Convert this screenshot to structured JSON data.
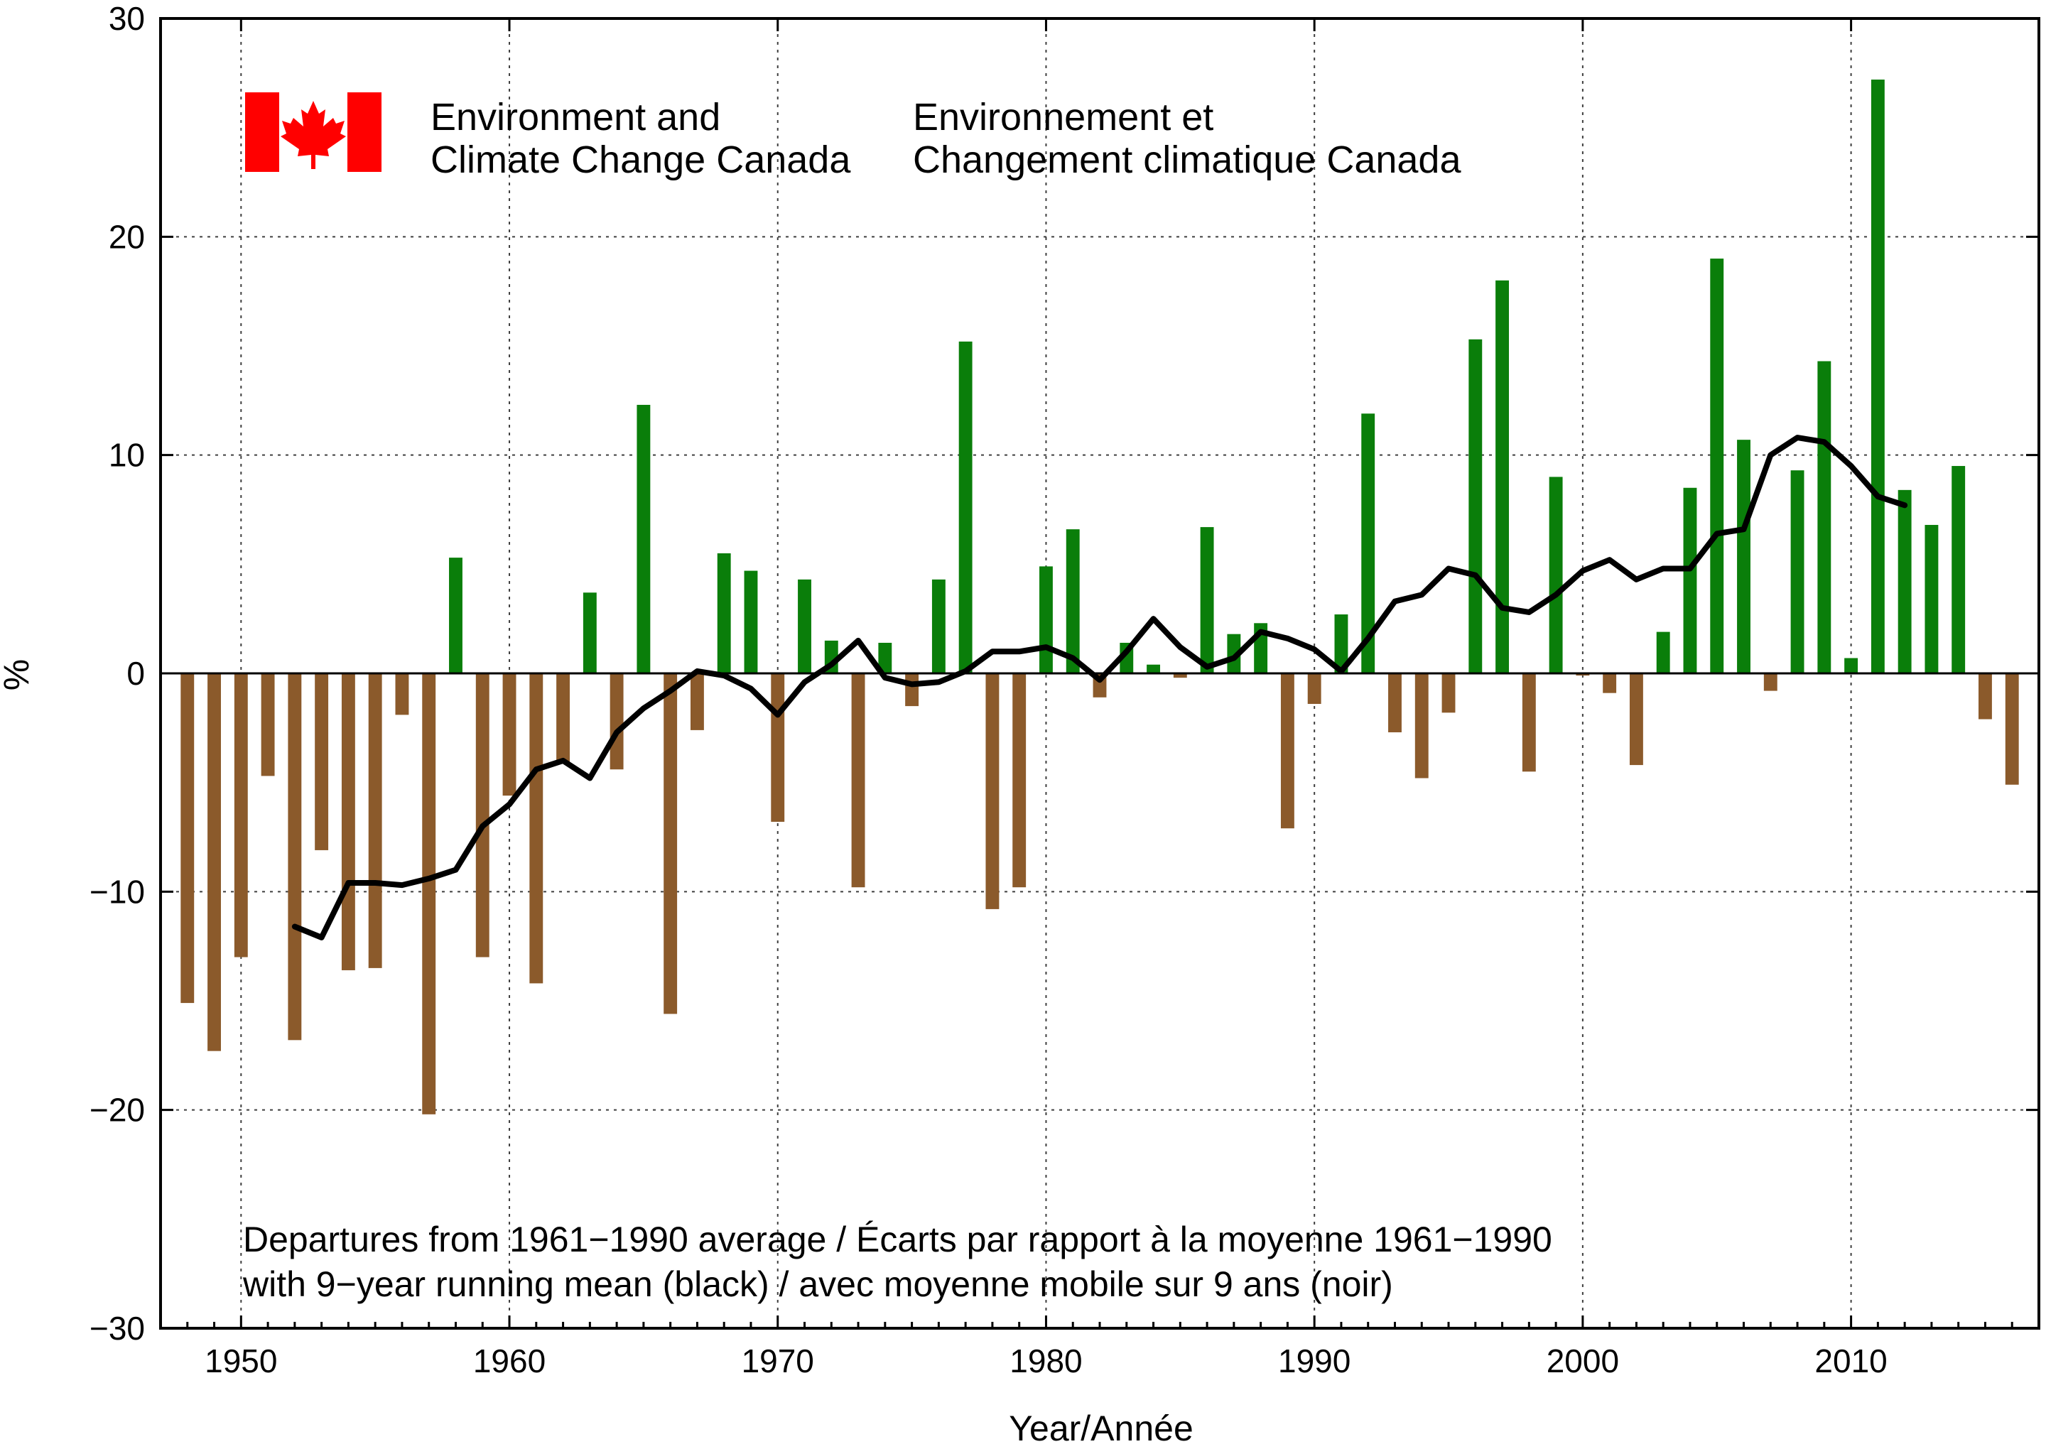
{
  "chart_data": {
    "type": "bar",
    "title": "",
    "xlabel": "Year/Année",
    "ylabel": "%",
    "xlim": [
      1947,
      2017
    ],
    "ylim": [
      -30,
      30
    ],
    "x_ticks": [
      1950,
      1960,
      1970,
      1980,
      1990,
      2000,
      2010
    ],
    "y_ticks": [
      -30,
      -20,
      -10,
      0,
      10,
      20,
      30
    ],
    "grid": true,
    "colors": {
      "positive": "#0a7e0a",
      "negative": "#8b5a2b",
      "running_mean": "#000000",
      "flag_red": "#ff0000"
    },
    "series": [
      {
        "name": "Departures from 1961-1990 average",
        "x": [
          1948,
          1949,
          1950,
          1951,
          1952,
          1953,
          1954,
          1955,
          1956,
          1957,
          1958,
          1959,
          1960,
          1961,
          1962,
          1963,
          1964,
          1965,
          1966,
          1967,
          1968,
          1969,
          1970,
          1971,
          1972,
          1973,
          1974,
          1975,
          1976,
          1977,
          1978,
          1979,
          1980,
          1981,
          1982,
          1983,
          1984,
          1985,
          1986,
          1987,
          1988,
          1989,
          1990,
          1991,
          1992,
          1993,
          1994,
          1995,
          1996,
          1997,
          1998,
          1999,
          2000,
          2001,
          2002,
          2003,
          2004,
          2005,
          2006,
          2007,
          2008,
          2009,
          2010,
          2011,
          2012,
          2013,
          2014,
          2015,
          2016
        ],
        "values": [
          -15.1,
          -17.3,
          -13.0,
          -4.7,
          -16.8,
          -8.1,
          -13.6,
          -13.5,
          -1.9,
          -20.2,
          5.3,
          -13.0,
          -5.6,
          -14.2,
          -4.1,
          3.7,
          -4.4,
          12.3,
          -15.6,
          -2.6,
          5.5,
          4.7,
          -6.8,
          4.3,
          1.5,
          -9.8,
          1.4,
          -1.5,
          4.3,
          15.2,
          -10.8,
          -9.8,
          4.9,
          6.6,
          -1.1,
          1.4,
          0.4,
          -0.2,
          6.7,
          1.8,
          2.3,
          -7.1,
          -1.4,
          2.7,
          11.9,
          -2.7,
          -4.8,
          -1.8,
          15.3,
          18.0,
          -4.5,
          9.0,
          -0.1,
          -0.9,
          -4.2,
          1.9,
          8.5,
          19.0,
          10.7,
          -0.8,
          9.3,
          14.3,
          0.7,
          27.2,
          8.4,
          6.8,
          9.5,
          -2.1,
          -5.1
        ]
      },
      {
        "name": "9-year running mean",
        "x": [
          1952,
          1953,
          1954,
          1955,
          1956,
          1957,
          1958,
          1959,
          1960,
          1961,
          1962,
          1963,
          1964,
          1965,
          1966,
          1967,
          1968,
          1969,
          1970,
          1971,
          1972,
          1973,
          1974,
          1975,
          1976,
          1977,
          1978,
          1979,
          1980,
          1981,
          1982,
          1983,
          1984,
          1985,
          1986,
          1987,
          1988,
          1989,
          1990,
          1991,
          1992,
          1993,
          1994,
          1995,
          1996,
          1997,
          1998,
          1999,
          2000,
          2001,
          2002,
          2003,
          2004,
          2005,
          2006,
          2007,
          2008,
          2009,
          2010,
          2011,
          2012
        ],
        "values": [
          -11.6,
          -12.1,
          -9.6,
          -9.6,
          -9.7,
          -9.4,
          -9.0,
          -7.0,
          -6.0,
          -4.4,
          -4.0,
          -4.8,
          -2.7,
          -1.6,
          -0.8,
          0.1,
          -0.1,
          -0.7,
          -1.9,
          -0.4,
          0.4,
          1.5,
          -0.2,
          -0.5,
          -0.4,
          0.1,
          1.0,
          1.0,
          1.2,
          0.7,
          -0.3,
          1.0,
          2.5,
          1.2,
          0.3,
          0.7,
          1.9,
          1.6,
          1.1,
          0.1,
          1.6,
          3.3,
          3.6,
          4.8,
          4.5,
          3.0,
          2.8,
          3.6,
          4.7,
          5.2,
          4.3,
          4.8,
          4.8,
          6.4,
          6.6,
          10.0,
          10.8,
          10.6,
          9.5,
          8.1,
          7.7
        ]
      }
    ]
  },
  "org": {
    "en_line1": "Environment and",
    "en_line2": "Climate Change Canada",
    "fr_line1": "Environnement et",
    "fr_line2": "Changement climatique Canada"
  },
  "note": {
    "line1": "Departures from 1961−1990 average / Écarts par rapport à la moyenne 1961−1990",
    "line2": "with 9−year running mean (black)   / avec moyenne mobile sur 9 ans (noir)"
  }
}
